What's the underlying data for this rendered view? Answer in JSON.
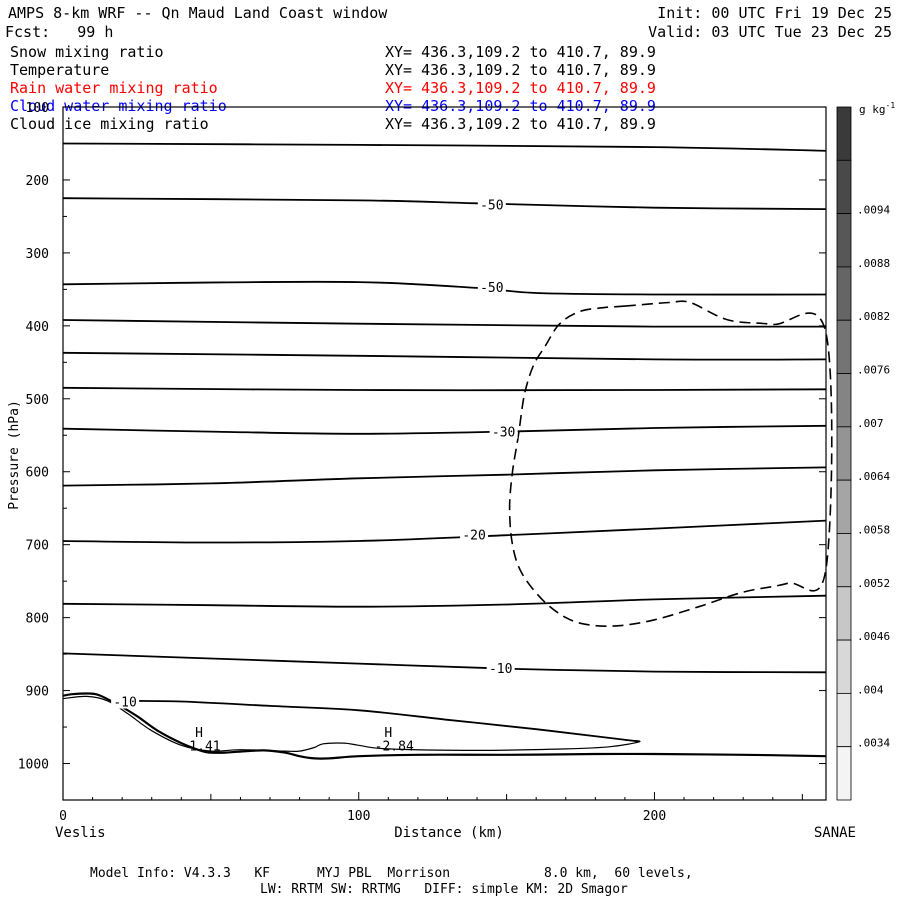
{
  "header": {
    "title": "AMPS 8-km WRF -- Qn Maud Land Coast window",
    "init": "Init: 00 UTC Fri 19 Dec 25",
    "fcst": "Fcst:   99 h",
    "valid": "Valid: 03 UTC Tue 23 Dec 25"
  },
  "fields": [
    {
      "name": "Snow mixing ratio",
      "xy": "XY= 436.3,109.2 to 410.7, 89.9",
      "color": "#000000"
    },
    {
      "name": "Temperature",
      "xy": "XY= 436.3,109.2 to 410.7, 89.9",
      "color": "#000000"
    },
    {
      "name": "Rain water mixing ratio",
      "xy": "XY= 436.3,109.2 to 410.7, 89.9",
      "color": "#ff0000"
    },
    {
      "name": "Cloud water mixing ratio",
      "xy": "XY= 436.3,109.2 to 410.7, 89.9",
      "color": "#0000ff"
    },
    {
      "name": "Cloud ice mixing ratio",
      "xy": "XY= 436.3,109.2 to 410.7, 89.9",
      "color": "#000000"
    }
  ],
  "footer": {
    "model_info": "Model Info: V4.3.3   KF      MYJ PBL  Morrison            8.0 km,  60 levels,",
    "physics": "LW: RRTM SW: RRTMG   DIFF: simple KM: 2D Smagor"
  },
  "chart_data": {
    "type": "line",
    "title": "AMPS 8-km WRF -- Qn Maud Land Coast window",
    "xlabel": "Distance (km)",
    "ylabel": "Pressure (hPa)",
    "xlim": [
      0,
      258
    ],
    "ylim": [
      1050,
      100
    ],
    "x_ticks": [
      0,
      100,
      200
    ],
    "y_ticks": [
      100,
      200,
      300,
      400,
      500,
      600,
      700,
      800,
      900,
      1000
    ],
    "endpoints": {
      "left": "Veslis",
      "right": "SANAE"
    },
    "colorbar": {
      "units": "g kg",
      "units_sup": "-1",
      "labels": [
        ".0094",
        ".0088",
        ".0082",
        ".0076",
        ".007",
        ".0064",
        ".0058",
        ".0052",
        ".0046",
        ".004",
        ".0034"
      ],
      "colors": [
        "#3a3a3a",
        "#494949",
        "#575757",
        "#656565",
        "#747474",
        "#848484",
        "#949494",
        "#a5a5a5",
        "#b6b6b6",
        "#c7c7c7",
        "#d8d8d8",
        "#e8e8e8",
        "#f4f4f4"
      ]
    },
    "isotherms": [
      {
        "x": [
          0,
          100,
          200,
          258
        ],
        "p": [
          150,
          152,
          155,
          160
        ]
      },
      {
        "x": [
          0,
          100,
          140,
          200,
          258
        ],
        "p": [
          225,
          228,
          232,
          238,
          240
        ]
      },
      {
        "x": [
          0,
          40,
          100,
          140,
          160,
          200,
          258
        ],
        "p": [
          343,
          341,
          340,
          348,
          355,
          357,
          357
        ]
      },
      {
        "x": [
          0,
          100,
          200,
          258
        ],
        "p": [
          392,
          397,
          401,
          401
        ]
      },
      {
        "x": [
          0,
          100,
          200,
          258
        ],
        "p": [
          437,
          441,
          446,
          446
        ]
      },
      {
        "x": [
          0,
          100,
          200,
          258
        ],
        "p": [
          485,
          488,
          488,
          487
        ]
      },
      {
        "x": [
          0,
          50,
          100,
          150,
          200,
          258
        ],
        "p": [
          541,
          545,
          548,
          545,
          540,
          537
        ]
      },
      {
        "x": [
          0,
          50,
          100,
          150,
          200,
          258
        ],
        "p": [
          619,
          616,
          609,
          604,
          598,
          594
        ]
      },
      {
        "x": [
          0,
          50,
          100,
          150,
          200,
          258
        ],
        "p": [
          695,
          697,
          695,
          687,
          678,
          667
        ]
      },
      {
        "x": [
          0,
          50,
          100,
          150,
          200,
          258
        ],
        "p": [
          781,
          783,
          785,
          782,
          775,
          770
        ]
      },
      {
        "x": [
          0,
          50,
          100,
          150,
          200,
          258
        ],
        "p": [
          849,
          856,
          863,
          870,
          874,
          875
        ]
      }
    ],
    "temp_labels": [
      {
        "text": "-50",
        "x": 145,
        "p": 234
      },
      {
        "text": "-50",
        "x": 145,
        "p": 347
      },
      {
        "text": "-30",
        "x": 149,
        "p": 545
      },
      {
        "text": "-20",
        "x": 139,
        "p": 686
      },
      {
        "text": "-10",
        "x": 148,
        "p": 869
      },
      {
        "text": "-10",
        "x": 21,
        "p": 915
      }
    ],
    "cloud_ice_contour": {
      "x": [
        190,
        205,
        212,
        225,
        240,
        258,
        258,
        245,
        230,
        215,
        200,
        188,
        178,
        170,
        162,
        155,
        152,
        151,
        152,
        154,
        156,
        159,
        163,
        168,
        175,
        183,
        190
      ],
      "p": [
        373,
        368,
        368,
        392,
        398,
        410,
        733,
        753,
        765,
        785,
        803,
        811,
        810,
        800,
        775,
        738,
        700,
        650,
        600,
        550,
        495,
        455,
        428,
        397,
        380,
        375,
        373
      ]
    },
    "terrain": {
      "x": [
        0,
        3,
        8,
        12,
        18,
        25,
        32,
        40,
        47,
        50,
        55,
        62,
        68,
        75,
        80,
        85,
        90,
        100,
        120,
        150,
        180,
        200,
        230,
        258
      ],
      "p": [
        907,
        905,
        904,
        906,
        918,
        935,
        955,
        972,
        983,
        985,
        985,
        983,
        982,
        985,
        990,
        993,
        993,
        990,
        988,
        988,
        987,
        987,
        988,
        990
      ]
    },
    "terrain_inner": {
      "x": [
        0,
        8,
        15,
        22,
        30,
        40,
        50,
        60,
        75,
        80,
        85,
        88,
        95,
        100,
        110,
        140,
        170,
        185,
        195,
        190
      ],
      "p": [
        911,
        908,
        914,
        932,
        955,
        975,
        983,
        981,
        983,
        983,
        978,
        973,
        972,
        975,
        980,
        982,
        980,
        977,
        970,
        968
      ]
    },
    "inversion_line": {
      "x": [
        20,
        40,
        70,
        100,
        130,
        160,
        185,
        195
      ],
      "p": [
        914,
        915,
        921,
        927,
        940,
        953,
        965,
        970
      ]
    },
    "annotations": [
      {
        "text": "H",
        "x": 46,
        "p": 957
      },
      {
        "text": "1.41",
        "x": 48,
        "p": 975
      },
      {
        "text": "H",
        "x": 110,
        "p": 957
      },
      {
        "text": "-2.84",
        "x": 112,
        "p": 975
      }
    ]
  }
}
